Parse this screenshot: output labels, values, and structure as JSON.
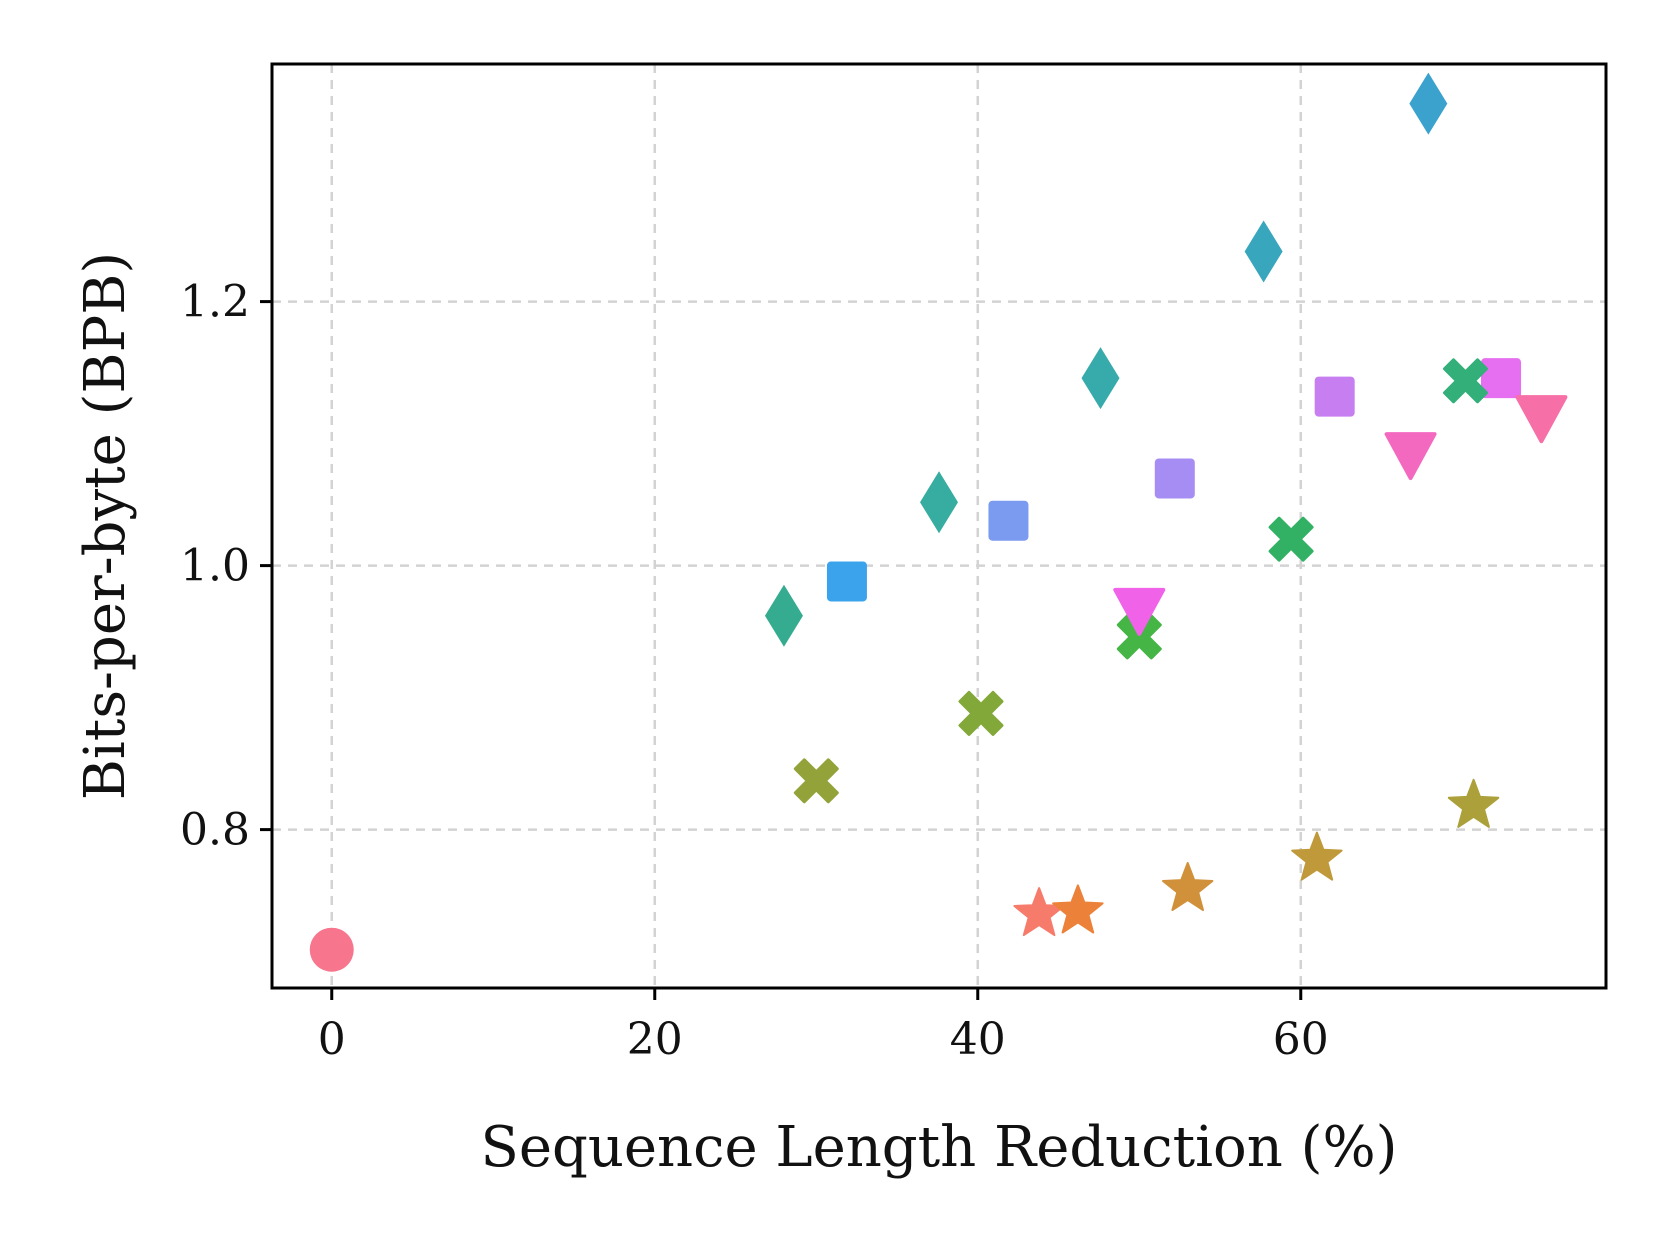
{
  "chart_data": {
    "type": "scatter",
    "xlabel": "Sequence Length Reduction (%)",
    "ylabel": "Bits-per-byte (BPB)",
    "xlim": [
      -3.7,
      78.9
    ],
    "ylim": [
      0.68,
      1.38
    ],
    "xticks": [
      0,
      20,
      40,
      60
    ],
    "yticks": [
      0.8,
      1.0,
      1.2
    ],
    "xtick_labels": [
      "0",
      "20",
      "40",
      "60"
    ],
    "ytick_labels": [
      "0.8",
      "1.0",
      "1.2"
    ],
    "grid": true,
    "legend": "none",
    "points": [
      {
        "x": 0.0,
        "y": 0.709,
        "marker": "circle",
        "color": "#f7768e"
      },
      {
        "x": 28.0,
        "y": 0.962,
        "marker": "diamond",
        "color": "#35ab8f"
      },
      {
        "x": 37.6,
        "y": 1.048,
        "marker": "diamond",
        "color": "#36ada0"
      },
      {
        "x": 47.6,
        "y": 1.142,
        "marker": "diamond",
        "color": "#37aaab"
      },
      {
        "x": 57.7,
        "y": 1.238,
        "marker": "diamond",
        "color": "#38a6bc"
      },
      {
        "x": 67.9,
        "y": 1.35,
        "marker": "diamond",
        "color": "#3aa2cd"
      },
      {
        "x": 31.9,
        "y": 0.988,
        "marker": "square",
        "color": "#3ba3ec"
      },
      {
        "x": 41.9,
        "y": 1.034,
        "marker": "square",
        "color": "#7b9bf0"
      },
      {
        "x": 52.2,
        "y": 1.066,
        "marker": "square",
        "color": "#a68df3"
      },
      {
        "x": 62.1,
        "y": 1.128,
        "marker": "square",
        "color": "#c67ef1"
      },
      {
        "x": 72.4,
        "y": 1.142,
        "marker": "square",
        "color": "#e66ef0"
      },
      {
        "x": 30.0,
        "y": 0.837,
        "marker": "x",
        "color": "#93a33a"
      },
      {
        "x": 40.2,
        "y": 0.888,
        "marker": "x",
        "color": "#83a83a"
      },
      {
        "x": 50.0,
        "y": 0.946,
        "marker": "x",
        "color": "#45b545"
      },
      {
        "x": 59.4,
        "y": 1.02,
        "marker": "x",
        "color": "#32b165"
      },
      {
        "x": 70.2,
        "y": 1.14,
        "marker": "x",
        "color": "#33b07a"
      },
      {
        "x": 50.0,
        "y": 0.968,
        "marker": "triangle",
        "color": "#f062e8"
      },
      {
        "x": 66.8,
        "y": 1.086,
        "marker": "triangle",
        "color": "#f469c0"
      },
      {
        "x": 74.9,
        "y": 1.114,
        "marker": "triangle",
        "color": "#f66fa6"
      },
      {
        "x": 43.8,
        "y": 0.736,
        "marker": "star",
        "color": "#f77b6a"
      },
      {
        "x": 46.2,
        "y": 0.738,
        "marker": "star",
        "color": "#ec823a"
      },
      {
        "x": 53.0,
        "y": 0.755,
        "marker": "star",
        "color": "#d0913a"
      },
      {
        "x": 61.0,
        "y": 0.778,
        "marker": "star",
        "color": "#c0993a"
      },
      {
        "x": 70.7,
        "y": 0.818,
        "marker": "star",
        "color": "#aca03a"
      }
    ]
  }
}
